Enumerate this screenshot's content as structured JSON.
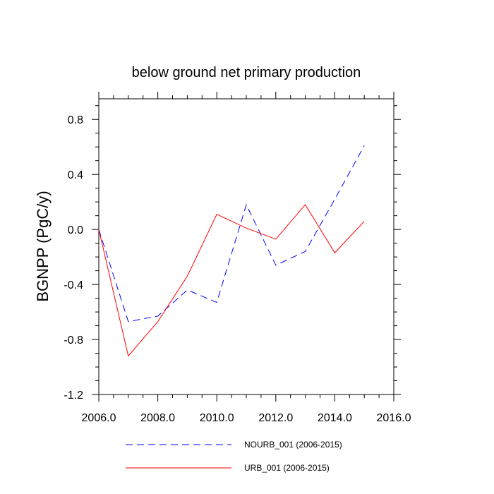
{
  "chart_data": {
    "type": "line",
    "title": "below ground net primary production",
    "xlabel": "",
    "ylabel": "BGNPP  (PgC/y)",
    "xlim": [
      2006,
      2016
    ],
    "ylim": [
      -1.2,
      0.95
    ],
    "x_ticks": [
      2006,
      2008,
      2010,
      2012,
      2014,
      2016
    ],
    "x_tick_labels": [
      "2006.0",
      "2008.0",
      "2010.0",
      "2012.0",
      "2014.0",
      "2016.0"
    ],
    "y_ticks": [
      0.8,
      0.4,
      0.0,
      -0.4,
      -0.8,
      -1.2
    ],
    "y_tick_labels": [
      "0.8",
      "0.4",
      "0.0",
      "-0.4",
      "-0.8",
      "-1.2"
    ],
    "x": [
      2006,
      2007,
      2008,
      2009,
      2010,
      2011,
      2012,
      2013,
      2014,
      2015
    ],
    "series": [
      {
        "name": "NOURB_001 (2006-2015)",
        "color": "#0000ff",
        "style": "dashed",
        "values": [
          0.0,
          -0.67,
          -0.63,
          -0.44,
          -0.53,
          0.18,
          -0.26,
          -0.16,
          0.22,
          0.61
        ]
      },
      {
        "name": "URB_001 (2006-2015)",
        "color": "#ff0000",
        "style": "solid",
        "values": [
          0.0,
          -0.92,
          -0.67,
          -0.34,
          0.11,
          0.01,
          -0.07,
          0.18,
          -0.17,
          0.06
        ]
      }
    ],
    "grid": false,
    "legend_position": "bottom"
  }
}
